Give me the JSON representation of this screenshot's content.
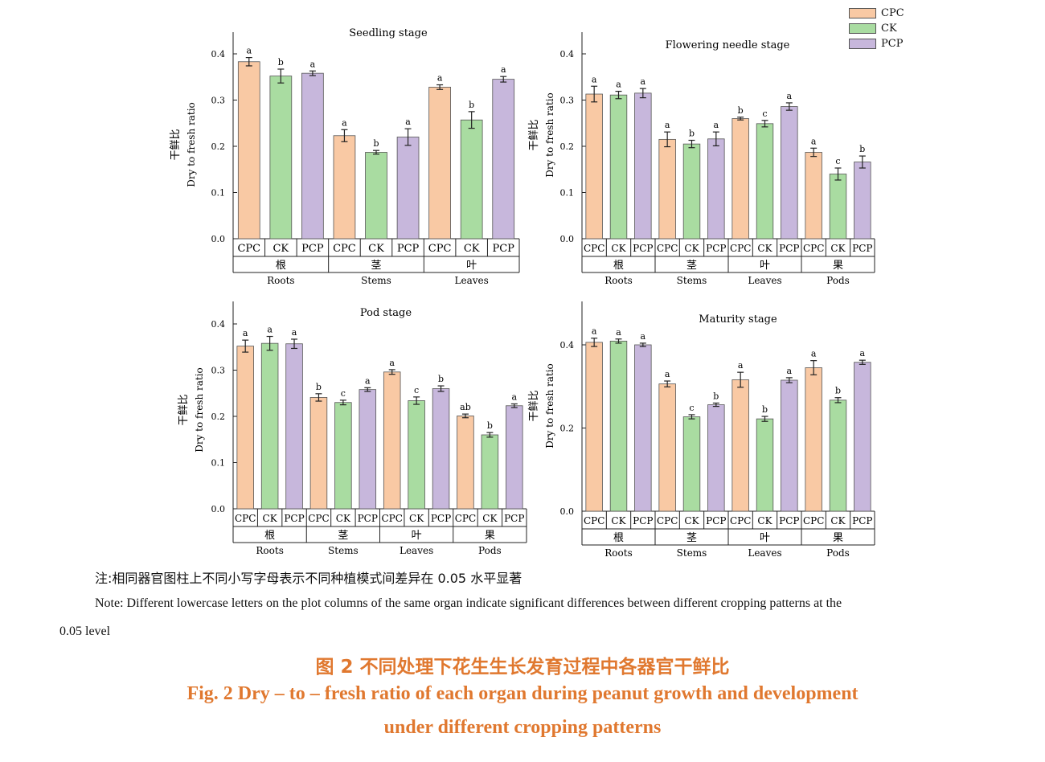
{
  "colors": {
    "CPC": "#f9c9a4",
    "CK": "#a9dca1",
    "PCP": "#c7b7dc"
  },
  "legend": [
    {
      "key": "CPC",
      "label": "CPC"
    },
    {
      "key": "CK",
      "label": "CK"
    },
    {
      "key": "PCP",
      "label": "PCP"
    }
  ],
  "chart_data": [
    {
      "type": "bar",
      "title": "Seedling stage",
      "ylabel_cn": "干鲜比",
      "ylabel": "Dry to fresh ratio",
      "ylim": [
        0,
        0.45
      ],
      "yticks": [
        "0.0",
        "0.1",
        "0.2",
        "0.3",
        "0.4"
      ],
      "treatments": [
        "CPC",
        "CK",
        "PCP"
      ],
      "groups": [
        {
          "cn": "根",
          "en": "Roots",
          "values": [
            0.383,
            0.352,
            0.358
          ],
          "errors": [
            0.009,
            0.015,
            0.005
          ],
          "letters": [
            "a",
            "b",
            "a"
          ]
        },
        {
          "cn": "茎",
          "en": "Stems",
          "values": [
            0.223,
            0.187,
            0.22
          ],
          "errors": [
            0.013,
            0.004,
            0.018
          ],
          "letters": [
            "a",
            "b",
            "a"
          ]
        },
        {
          "cn": "叶",
          "en": "Leaves",
          "values": [
            0.328,
            0.257,
            0.345
          ],
          "errors": [
            0.005,
            0.018,
            0.006
          ],
          "letters": [
            "a",
            "b",
            "a"
          ]
        }
      ]
    },
    {
      "type": "bar",
      "title": "Flowering needle stage",
      "ylabel_cn": "干鲜比",
      "ylabel": "Dry to fresh ratio",
      "ylim": [
        0,
        0.45
      ],
      "yticks": [
        "0.0",
        "0.1",
        "0.2",
        "0.3",
        "0.4"
      ],
      "treatments": [
        "CPC",
        "CK",
        "PCP"
      ],
      "groups": [
        {
          "cn": "根",
          "en": "Roots",
          "values": [
            0.313,
            0.311,
            0.315
          ],
          "errors": [
            0.017,
            0.008,
            0.01
          ],
          "letters": [
            "a",
            "a",
            "a"
          ]
        },
        {
          "cn": "茎",
          "en": "Stems",
          "values": [
            0.215,
            0.205,
            0.216
          ],
          "errors": [
            0.016,
            0.008,
            0.015
          ],
          "letters": [
            "a",
            "b",
            "a"
          ]
        },
        {
          "cn": "叶",
          "en": "Leaves",
          "values": [
            0.26,
            0.249,
            0.286
          ],
          "errors": [
            0.003,
            0.007,
            0.008
          ],
          "letters": [
            "b",
            "c",
            "a"
          ]
        },
        {
          "cn": "果",
          "en": "Pods",
          "values": [
            0.187,
            0.14,
            0.166
          ],
          "errors": [
            0.009,
            0.013,
            0.013
          ],
          "letters": [
            "a",
            "c",
            "b"
          ]
        }
      ]
    },
    {
      "type": "bar",
      "title": "Pod stage",
      "ylabel_cn": "干鲜比",
      "ylabel": "Dry to fresh ratio",
      "ylim": [
        0,
        0.45
      ],
      "yticks": [
        "0.0",
        "0.1",
        "0.2",
        "0.3",
        "0.4"
      ],
      "treatments": [
        "CPC",
        "CK",
        "PCP"
      ],
      "groups": [
        {
          "cn": "根",
          "en": "Roots",
          "values": [
            0.352,
            0.358,
            0.357
          ],
          "errors": [
            0.013,
            0.015,
            0.01
          ],
          "letters": [
            "a",
            "a",
            "a"
          ]
        },
        {
          "cn": "茎",
          "en": "Stems",
          "values": [
            0.241,
            0.23,
            0.258
          ],
          "errors": [
            0.008,
            0.005,
            0.004
          ],
          "letters": [
            "b",
            "c",
            "a"
          ]
        },
        {
          "cn": "叶",
          "en": "Leaves",
          "values": [
            0.296,
            0.234,
            0.26
          ],
          "errors": [
            0.005,
            0.008,
            0.006
          ],
          "letters": [
            "a",
            "c",
            "b"
          ]
        },
        {
          "cn": "果",
          "en": "Pods",
          "values": [
            0.201,
            0.16,
            0.223
          ],
          "errors": [
            0.004,
            0.005,
            0.004
          ],
          "letters": [
            "ab",
            "b",
            "a"
          ]
        }
      ]
    },
    {
      "type": "bar",
      "title": "Maturity stage",
      "ylabel_cn": "干鲜比",
      "ylabel": "Dry to fresh ratio",
      "ylim": [
        0,
        0.5
      ],
      "yticks": [
        "0.0",
        "0.2",
        "0.4"
      ],
      "ytick_values": [
        0.0,
        0.2,
        0.4
      ],
      "treatments": [
        "CPC",
        "CK",
        "PCP"
      ],
      "groups": [
        {
          "cn": "根",
          "en": "Roots",
          "values": [
            0.406,
            0.409,
            0.4
          ],
          "errors": [
            0.01,
            0.005,
            0.004
          ],
          "letters": [
            "a",
            "a",
            "a"
          ]
        },
        {
          "cn": "茎",
          "en": "Stems",
          "values": [
            0.306,
            0.227,
            0.256
          ],
          "errors": [
            0.007,
            0.005,
            0.004
          ],
          "letters": [
            "a",
            "c",
            "b"
          ]
        },
        {
          "cn": "叶",
          "en": "Leaves",
          "values": [
            0.316,
            0.222,
            0.315
          ],
          "errors": [
            0.018,
            0.006,
            0.006
          ],
          "letters": [
            "a",
            "b",
            "a"
          ]
        },
        {
          "cn": "果",
          "en": "Pods",
          "values": [
            0.345,
            0.267,
            0.358
          ],
          "errors": [
            0.017,
            0.006,
            0.005
          ],
          "letters": [
            "a",
            "b",
            "a"
          ]
        }
      ]
    }
  ],
  "notes": {
    "cn": "注:相同器官图柱上不同小写字母表示不同种植模式间差异在 0.05 水平显著",
    "en_line1": "Note: Different lowercase letters on the plot columns of the same organ indicate significant differences between different cropping patterns at the",
    "en_line2": "0.05 level"
  },
  "caption": {
    "cn": "图 2    不同处理下花生生长发育过程中各器官干鲜比",
    "en_line1": "Fig. 2    Dry – to – fresh ratio of each organ during peanut growth and development",
    "en_line2": "under different cropping patterns"
  }
}
